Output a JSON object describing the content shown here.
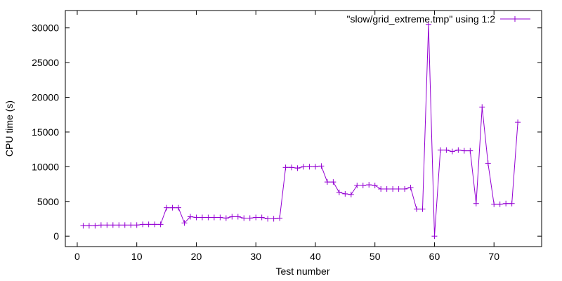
{
  "chart_data": {
    "type": "line",
    "xlabel": "Test number",
    "ylabel": "CPU time (s)",
    "xlim": [
      -2,
      78
    ],
    "ylim": [
      -1500,
      32500
    ],
    "xticks": [
      0,
      10,
      20,
      30,
      40,
      50,
      60,
      70
    ],
    "yticks": [
      0,
      5000,
      10000,
      15000,
      20000,
      25000,
      30000
    ],
    "legend_position": "top-right",
    "grid": false,
    "series": [
      {
        "name": "\"slow/grid_extreme.tmp\" using 1:2",
        "color": "#9400d3",
        "marker": "plus",
        "x": [
          1,
          2,
          3,
          4,
          5,
          6,
          7,
          8,
          9,
          10,
          11,
          12,
          13,
          14,
          15,
          16,
          17,
          18,
          19,
          20,
          21,
          22,
          23,
          24,
          25,
          26,
          27,
          28,
          29,
          30,
          31,
          32,
          33,
          34,
          35,
          36,
          37,
          38,
          39,
          40,
          41,
          42,
          43,
          44,
          45,
          46,
          47,
          48,
          49,
          50,
          51,
          52,
          53,
          54,
          55,
          56,
          57,
          58,
          59,
          60,
          61,
          62,
          63,
          64,
          65,
          66,
          67,
          68,
          69,
          70,
          71,
          72,
          73,
          74
        ],
        "y": [
          1500,
          1500,
          1500,
          1600,
          1600,
          1600,
          1600,
          1600,
          1600,
          1600,
          1700,
          1700,
          1700,
          1700,
          4100,
          4100,
          4100,
          1900,
          2800,
          2700,
          2700,
          2700,
          2700,
          2700,
          2600,
          2800,
          2800,
          2600,
          2600,
          2700,
          2700,
          2500,
          2500,
          2600,
          9900,
          9900,
          9800,
          10000,
          10000,
          10000,
          10100,
          7800,
          7800,
          6300,
          6100,
          6000,
          7300,
          7300,
          7400,
          7300,
          6800,
          6800,
          6800,
          6800,
          6800,
          7000,
          3900,
          3900,
          30500,
          0,
          12400,
          12400,
          12200,
          12400,
          12300,
          12300,
          4700,
          18600,
          10500,
          4600,
          4600,
          4700,
          4700,
          16400
        ]
      }
    ]
  }
}
